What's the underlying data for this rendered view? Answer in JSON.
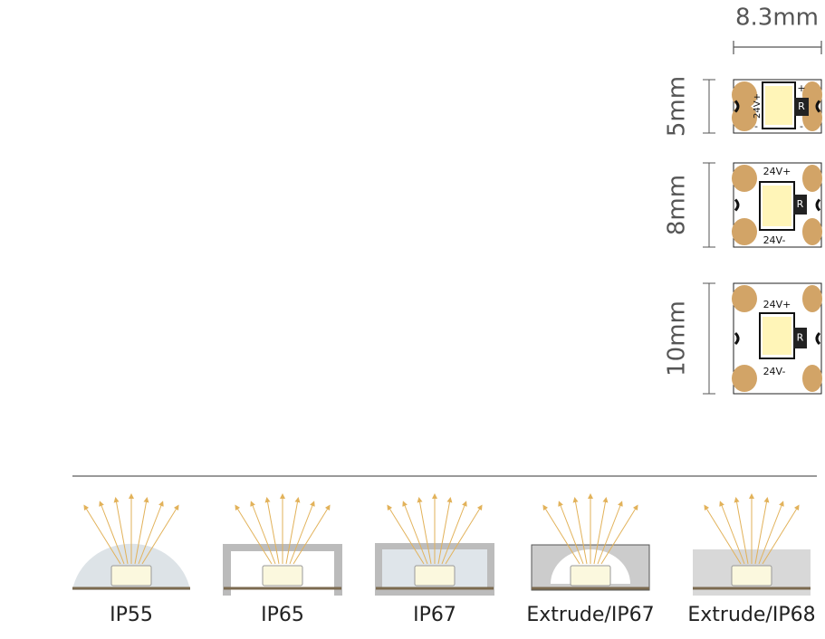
{
  "dimensions": {
    "width": "8.3mm"
  },
  "strips": [
    {
      "height": "5mm",
      "labels": [
        "24V+",
        "-",
        "+",
        "-",
        "R"
      ]
    },
    {
      "height": "8mm",
      "labels": [
        "24V+",
        "24V-",
        "R"
      ]
    },
    {
      "height": "10mm",
      "labels": [
        "24V+",
        "24V-",
        "R"
      ]
    }
  ],
  "profiles": [
    "IP55",
    "IP65",
    "IP67",
    "Extrude/IP67",
    "Extrude/IP68"
  ]
}
